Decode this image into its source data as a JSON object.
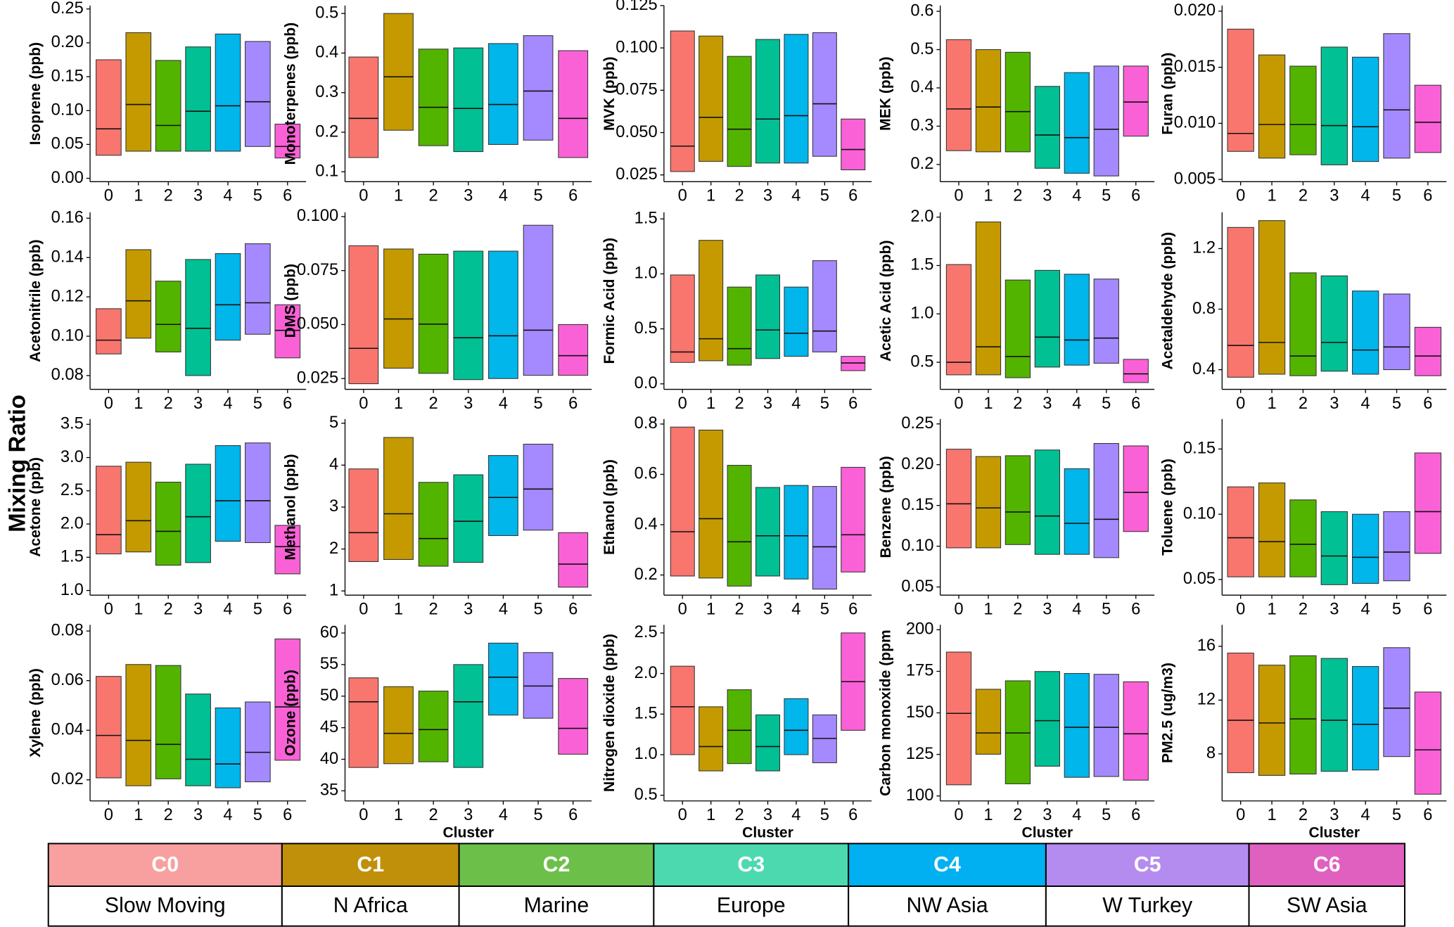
{
  "y_title": "Mixing Ratio",
  "bar_colors": [
    "#f8766d",
    "#c49a00",
    "#53b400",
    "#00c094",
    "#00b6eb",
    "#a58aff",
    "#fb61d7"
  ],
  "legend": {
    "codes": [
      "C0",
      "C1",
      "C2",
      "C3",
      "C4",
      "C5",
      "C6"
    ],
    "names": [
      "Slow Moving",
      "N Africa",
      "Marine",
      "Europe",
      "NW Asia",
      "W Turkey",
      "SW Asia"
    ],
    "colors": [
      "#f8a0a0",
      "#c0900a",
      "#6cc04a",
      "#4dd9b0",
      "#00b0f0",
      "#b48cf0",
      "#e060c0"
    ]
  },
  "chart_data": [
    {
      "type": "range",
      "ylabel": "Isoprene (ppb)",
      "categories": [
        "0",
        "1",
        "2",
        "3",
        "4",
        "5",
        "6"
      ],
      "low": [
        0.034,
        0.04,
        0.04,
        0.04,
        0.04,
        0.047,
        0.03
      ],
      "high": [
        0.175,
        0.215,
        0.174,
        0.194,
        0.213,
        0.202,
        0.08
      ],
      "median": [
        0.073,
        0.109,
        0.078,
        0.099,
        0.107,
        0.113,
        0.047
      ],
      "ylim": [
        -0.005,
        0.255
      ],
      "yticks": [
        {
          "value": 0,
          "label": "0.00"
        },
        0.05,
        {
          "value": 0.1,
          "label": "0.10"
        },
        0.15,
        {
          "value": 0.2,
          "label": "0.20"
        },
        0.25
      ]
    },
    {
      "type": "range",
      "ylabel": "Monoterpenes (ppb)",
      "categories": [
        "0",
        "1",
        "2",
        "3",
        "4",
        "5",
        "6"
      ],
      "low": [
        0.136,
        0.205,
        0.166,
        0.151,
        0.169,
        0.18,
        0.136
      ],
      "high": [
        0.39,
        0.5,
        0.41,
        0.413,
        0.424,
        0.444,
        0.406
      ],
      "median": [
        0.235,
        0.34,
        0.263,
        0.26,
        0.27,
        0.304,
        0.235
      ],
      "ylim": [
        0.075,
        0.52
      ],
      "yticks": [
        0.1,
        0.2,
        0.3,
        0.4,
        0.5
      ]
    },
    {
      "type": "range",
      "ylabel": "MVK (ppb)",
      "categories": [
        "0",
        "1",
        "2",
        "3",
        "4",
        "5",
        "6"
      ],
      "low": [
        0.027,
        0.033,
        0.03,
        0.032,
        0.032,
        0.036,
        0.028
      ],
      "high": [
        0.11,
        0.107,
        0.095,
        0.105,
        0.108,
        0.109,
        0.058
      ],
      "median": [
        0.042,
        0.059,
        0.052,
        0.058,
        0.06,
        0.067,
        0.04
      ],
      "ylim": [
        0.021,
        0.125
      ],
      "yticks": [
        0.025,
        {
          "value": 0.05,
          "label": "0.050"
        },
        0.075,
        {
          "value": 0.1,
          "label": "0.100"
        },
        0.125
      ]
    },
    {
      "type": "range",
      "ylabel": "MEK (ppb)",
      "categories": [
        "0",
        "1",
        "2",
        "3",
        "4",
        "5",
        "6"
      ],
      "low": [
        0.236,
        0.233,
        0.233,
        0.19,
        0.177,
        0.17,
        0.274
      ],
      "high": [
        0.526,
        0.5,
        0.493,
        0.404,
        0.44,
        0.457,
        0.457
      ],
      "median": [
        0.345,
        0.35,
        0.338,
        0.277,
        0.27,
        0.292,
        0.363
      ],
      "ylim": [
        0.155,
        0.615
      ],
      "yticks": [
        0.2,
        0.3,
        0.4,
        0.5,
        0.6
      ]
    },
    {
      "type": "range",
      "ylabel": "Furan (ppb)",
      "categories": [
        "0",
        "1",
        "2",
        "3",
        "4",
        "5",
        "6"
      ],
      "low": [
        0.0075,
        0.0069,
        0.0072,
        0.0063,
        0.0066,
        0.0069,
        0.0074
      ],
      "high": [
        0.0184,
        0.0161,
        0.0151,
        0.0168,
        0.0159,
        0.018,
        0.0134
      ],
      "median": [
        0.0091,
        0.0099,
        0.0099,
        0.0098,
        0.0097,
        0.0112,
        0.0101
      ],
      "ylim": [
        0.0048,
        0.0205
      ],
      "yticks": [
        0.005,
        {
          "value": 0.01,
          "label": "0.010"
        },
        0.015,
        {
          "value": 0.02,
          "label": "0.020"
        }
      ]
    },
    {
      "type": "range",
      "ylabel": "Acetonitrile (ppb)",
      "categories": [
        "0",
        "1",
        "2",
        "3",
        "4",
        "5",
        "6"
      ],
      "low": [
        0.091,
        0.099,
        0.092,
        0.08,
        0.098,
        0.101,
        0.089
      ],
      "high": [
        0.114,
        0.144,
        0.128,
        0.139,
        0.142,
        0.147,
        0.116
      ],
      "median": [
        0.098,
        0.118,
        0.106,
        0.104,
        0.116,
        0.117,
        0.103
      ],
      "ylim": [
        0.073,
        0.163
      ],
      "yticks": [
        0.08,
        {
          "value": 0.1,
          "label": "0.10"
        },
        0.12,
        0.14,
        0.16
      ]
    },
    {
      "type": "range",
      "ylabel": "DMS (ppb)",
      "categories": [
        "0",
        "1",
        "2",
        "3",
        "4",
        "5",
        "6"
      ],
      "low": [
        0.0226,
        0.0298,
        0.0274,
        0.0245,
        0.025,
        0.0265,
        0.0265
      ],
      "high": [
        0.0865,
        0.085,
        0.0826,
        0.084,
        0.084,
        0.096,
        0.05
      ],
      "median": [
        0.039,
        0.0526,
        0.0502,
        0.0439,
        0.0448,
        0.0474,
        0.0356
      ],
      "ylim": [
        0.02,
        0.102
      ],
      "yticks": [
        0.025,
        {
          "value": 0.05,
          "label": "0.050"
        },
        0.075,
        {
          "value": 0.1,
          "label": "0.100"
        }
      ]
    },
    {
      "type": "range",
      "ylabel": "Formic Acid (ppb)",
      "categories": [
        "0",
        "1",
        "2",
        "3",
        "4",
        "5",
        "6"
      ],
      "low": [
        0.195,
        0.21,
        0.17,
        0.23,
        0.25,
        0.29,
        0.12
      ],
      "high": [
        0.99,
        1.305,
        0.88,
        0.99,
        0.88,
        1.12,
        0.25
      ],
      "median": [
        0.29,
        0.41,
        0.32,
        0.49,
        0.46,
        0.48,
        0.19
      ],
      "ylim": [
        -0.05,
        1.56
      ],
      "yticks": [
        {
          "value": 0,
          "label": "0.0"
        },
        0.5,
        {
          "value": 1,
          "label": "1.0"
        },
        1.5
      ]
    },
    {
      "type": "range",
      "ylabel": "Acetic Acid (ppb)",
      "categories": [
        "0",
        "1",
        "2",
        "3",
        "4",
        "5",
        "6"
      ],
      "low": [
        0.37,
        0.37,
        0.34,
        0.45,
        0.47,
        0.49,
        0.29
      ],
      "high": [
        1.51,
        1.95,
        1.35,
        1.45,
        1.41,
        1.36,
        0.53
      ],
      "median": [
        0.5,
        0.66,
        0.56,
        0.76,
        0.73,
        0.75,
        0.38
      ],
      "ylim": [
        0.22,
        2.05
      ],
      "yticks": [
        0.5,
        {
          "value": 1,
          "label": "1.0"
        },
        1.5,
        {
          "value": 2,
          "label": "2.0"
        }
      ]
    },
    {
      "type": "range",
      "ylabel": "Acetaldehyde (ppb)",
      "categories": [
        "0",
        "1",
        "2",
        "3",
        "4",
        "5",
        "6"
      ],
      "low": [
        0.35,
        0.37,
        0.36,
        0.39,
        0.37,
        0.4,
        0.36
      ],
      "high": [
        1.34,
        1.385,
        1.04,
        1.02,
        0.92,
        0.9,
        0.68
      ],
      "median": [
        0.56,
        0.58,
        0.49,
        0.58,
        0.53,
        0.55,
        0.49
      ],
      "ylim": [
        0.27,
        1.44
      ],
      "yticks": [
        0.4,
        0.8,
        1.2
      ]
    },
    {
      "type": "range",
      "ylabel": "Acetone (ppb)",
      "categories": [
        "0",
        "1",
        "2",
        "3",
        "4",
        "5",
        "6"
      ],
      "low": [
        1.55,
        1.58,
        1.38,
        1.42,
        1.74,
        1.72,
        1.25
      ],
      "high": [
        2.87,
        2.93,
        2.63,
        2.9,
        3.18,
        3.22,
        1.98
      ],
      "median": [
        1.84,
        2.05,
        1.89,
        2.11,
        2.35,
        2.35,
        1.66
      ],
      "ylim": [
        0.93,
        3.58
      ],
      "yticks": [
        {
          "value": 1,
          "label": "1.0"
        },
        1.5,
        {
          "value": 2,
          "label": "2.0"
        },
        2.5,
        {
          "value": 3,
          "label": "3.0"
        },
        3.5
      ]
    },
    {
      "type": "range",
      "ylabel": "Methanol (ppb)",
      "categories": [
        "0",
        "1",
        "2",
        "3",
        "4",
        "5",
        "6"
      ],
      "low": [
        1.7,
        1.75,
        1.59,
        1.68,
        2.32,
        2.45,
        1.09
      ],
      "high": [
        3.91,
        4.66,
        3.59,
        3.77,
        4.23,
        4.5,
        2.39
      ],
      "median": [
        2.39,
        2.84,
        2.25,
        2.66,
        3.23,
        3.43,
        1.64
      ],
      "ylim": [
        0.9,
        5.1
      ],
      "yticks": [
        1,
        2,
        3,
        4,
        5
      ]
    },
    {
      "type": "range",
      "ylabel": "Ethanol (ppb)",
      "categories": [
        "0",
        "1",
        "2",
        "3",
        "4",
        "5",
        "6"
      ],
      "low": [
        0.196,
        0.188,
        0.156,
        0.196,
        0.184,
        0.144,
        0.212
      ],
      "high": [
        0.788,
        0.776,
        0.636,
        0.548,
        0.556,
        0.552,
        0.628
      ],
      "median": [
        0.372,
        0.424,
        0.332,
        0.356,
        0.356,
        0.312,
        0.36
      ],
      "ylim": [
        0.12,
        0.82
      ],
      "yticks": [
        0.2,
        0.4,
        0.6,
        0.8
      ]
    },
    {
      "type": "range",
      "ylabel": "Benzene (ppb)",
      "categories": [
        "0",
        "1",
        "2",
        "3",
        "4",
        "5",
        "6"
      ],
      "low": [
        0.098,
        0.098,
        0.102,
        0.09,
        0.09,
        0.086,
        0.118
      ],
      "high": [
        0.219,
        0.21,
        0.211,
        0.218,
        0.195,
        0.226,
        0.223
      ],
      "median": [
        0.152,
        0.147,
        0.142,
        0.137,
        0.128,
        0.133,
        0.166
      ],
      "ylim": [
        0.04,
        0.256
      ],
      "yticks": [
        0.05,
        {
          "value": 0.1,
          "label": "0.10"
        },
        0.15,
        {
          "value": 0.2,
          "label": "0.20"
        },
        0.25
      ]
    },
    {
      "type": "range",
      "ylabel": "Toluene (ppb)",
      "categories": [
        "0",
        "1",
        "2",
        "3",
        "4",
        "5",
        "6"
      ],
      "low": [
        0.052,
        0.052,
        0.052,
        0.046,
        0.047,
        0.049,
        0.07
      ],
      "high": [
        0.121,
        0.124,
        0.111,
        0.102,
        0.1,
        0.102,
        0.147
      ],
      "median": [
        0.082,
        0.079,
        0.077,
        0.068,
        0.067,
        0.071,
        0.102
      ],
      "ylim": [
        0.038,
        0.173
      ],
      "yticks": [
        0.05,
        {
          "value": 0.1,
          "label": "0.10"
        },
        0.15
      ]
    },
    {
      "type": "range",
      "ylabel": "Xylene (ppb)",
      "categories": [
        "0",
        "1",
        "2",
        "3",
        "4",
        "5",
        "6"
      ],
      "low": [
        0.0208,
        0.0176,
        0.0204,
        0.0176,
        0.0168,
        0.0192,
        0.0279
      ],
      "high": [
        0.0617,
        0.0665,
        0.0661,
        0.0546,
        0.049,
        0.0514,
        0.0768
      ],
      "median": [
        0.0379,
        0.0359,
        0.0343,
        0.0283,
        0.0264,
        0.0311,
        0.0494
      ],
      "ylim": [
        0.0115,
        0.0825
      ],
      "yticks": [
        0.02,
        0.04,
        0.06,
        0.08
      ]
    },
    {
      "type": "range",
      "ylabel": "Ozone (ppb)",
      "categories": [
        "0",
        "1",
        "2",
        "3",
        "4",
        "5",
        "6"
      ],
      "low": [
        38.7,
        39.3,
        39.6,
        38.7,
        47,
        46.5,
        40.8
      ],
      "high": [
        52.9,
        51.5,
        50.8,
        55,
        58.4,
        56.9,
        52.8
      ],
      "median": [
        49.1,
        44.1,
        44.7,
        49.1,
        53,
        51.6,
        44.9
      ],
      "ylim": [
        33.4,
        61.3
      ],
      "xlabel": "Cluster",
      "yticks": [
        35,
        40,
        45,
        50,
        55,
        60
      ]
    },
    {
      "type": "range",
      "ylabel": "Nitrogen dioxide (ppb)",
      "categories": [
        "0",
        "1",
        "2",
        "3",
        "4",
        "5",
        "6"
      ],
      "low": [
        1,
        0.8,
        0.89,
        0.8,
        1,
        0.9,
        1.3
      ],
      "high": [
        2.09,
        1.59,
        1.8,
        1.49,
        1.69,
        1.49,
        2.5
      ],
      "median": [
        1.59,
        1.1,
        1.3,
        1.1,
        1.3,
        1.2,
        1.9
      ],
      "ylim": [
        0.43,
        2.6
      ],
      "xlabel": "Cluster",
      "yticks": [
        0.5,
        {
          "value": 1,
          "label": "1.0"
        },
        1.5,
        {
          "value": 2,
          "label": "2.0"
        },
        2.5
      ]
    },
    {
      "type": "range",
      "ylabel": "Carbon monoxide (ppm",
      "categories": [
        "0",
        "1",
        "2",
        "3",
        "4",
        "5",
        "6"
      ],
      "low": [
        106.7,
        125.1,
        107.3,
        117.9,
        111.2,
        111.7,
        109.5
      ],
      "high": [
        186.6,
        164.2,
        169.3,
        174.9,
        173.7,
        173.2,
        168.7
      ],
      "median": [
        149.7,
        137.9,
        137.9,
        145.3,
        141.3,
        141.3,
        137.4
      ],
      "ylim": [
        97,
        203
      ],
      "xlabel": "Cluster",
      "yticks": [
        100,
        125,
        150,
        175,
        200
      ]
    },
    {
      "type": "range",
      "ylabel": "PM2.5 (ug/m3)",
      "categories": [
        "0",
        "1",
        "2",
        "3",
        "4",
        "5",
        "6"
      ],
      "low": [
        6.6,
        6.4,
        6.5,
        6.7,
        6.8,
        7.8,
        5
      ],
      "high": [
        15.5,
        14.6,
        15.3,
        15.1,
        14.5,
        15.9,
        12.6
      ],
      "median": [
        10.5,
        10.3,
        10.6,
        10.5,
        10.2,
        11.4,
        8.3
      ],
      "ylim": [
        4.5,
        17.6
      ],
      "xlabel": "Cluster",
      "yticks": [
        8,
        12,
        16
      ]
    }
  ]
}
